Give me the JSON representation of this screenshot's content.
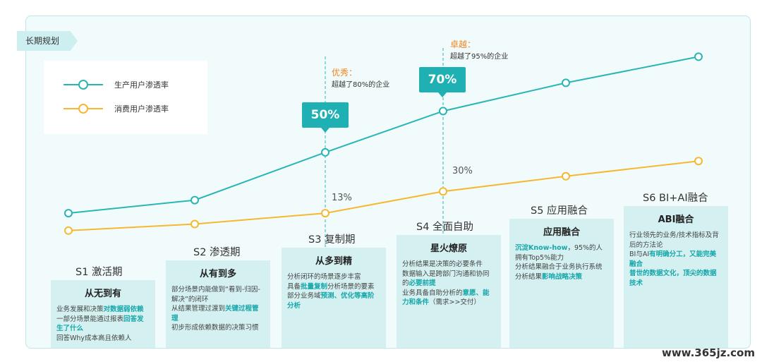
{
  "tag": "长期规划",
  "legend": {
    "series1": "生产用户渗透率",
    "series2": "消费用户渗透率"
  },
  "colors": {
    "teal": "#2ab5b5",
    "gold": "#f5b830",
    "accent": "#1fb0b3",
    "orange": "#f0851f"
  },
  "chart_data": {
    "type": "line",
    "categories": [
      "S1",
      "S2",
      "S3",
      "S4",
      "S5",
      "S6"
    ],
    "series": [
      {
        "name": "生产用户渗透率",
        "values": [
          8,
          14,
          36,
          55,
          68,
          80
        ]
      },
      {
        "name": "消费用户渗透率",
        "values": [
          0,
          3,
          8,
          18,
          25,
          32
        ]
      }
    ],
    "ylim": [
      -3,
      85
    ]
  },
  "badges": {
    "b50": "50%",
    "b70": "70%"
  },
  "labels": {
    "l13": "13%",
    "l30": "30%"
  },
  "annotations": {
    "excellent_title": "优秀：",
    "excellent_text": "超越了80%的企业",
    "outstanding_title": "卓越：",
    "outstanding_text": "超越了95%的企业"
  },
  "stages": [
    {
      "title": "S1 激活期",
      "head": "从无到有"
    },
    {
      "title": "S2 渗透期",
      "head": "从有到多"
    },
    {
      "title": "S3 复制期",
      "head": "从多到精"
    },
    {
      "title": "S4 全面自助",
      "head": "星火燎原"
    },
    {
      "title": "S5 应用融合",
      "head": "应用融合"
    },
    {
      "title": "S6 BI+AI融合",
      "head": "ABI融合"
    }
  ],
  "card_text": {
    "c1": [
      "业务发展和决策",
      "对数据弱依赖",
      "一部分场景能通过报表",
      "回答发生了什么",
      "回答Why成本高且依赖人"
    ],
    "c2": [
      "部分场景内能做到“看到-归因-解决”的闭环",
      "从结果管理过渡到",
      "关键过程管理",
      "初步形成依赖数据的决策习惯"
    ],
    "c3": [
      "分析闭环的场景逐步丰富",
      "具备",
      "批量复制",
      "分析场景的要素",
      "部分业务域",
      "预测、优化等高阶分析"
    ],
    "c4": [
      "分析结果是决策的必要条件",
      "数据输入是跨部门沟通和协同的",
      "必要前提",
      "业务具备自助分析的",
      "意愿、能力和条件",
      "（需求>>交付）"
    ],
    "c5": [
      "沉淀Know-how",
      "，95%的人拥有Top5%能力",
      "分析结果融合于业务执行系统",
      "分析结果",
      "影响战略决策"
    ],
    "c6": [
      "行业领先的业务/技术指标及背后的方法论",
      "BI与AI",
      "有明确分工，又能完美融合",
      "普世的数据文化，顶尖的数据技术"
    ]
  },
  "watermark": "www.365jz.com"
}
